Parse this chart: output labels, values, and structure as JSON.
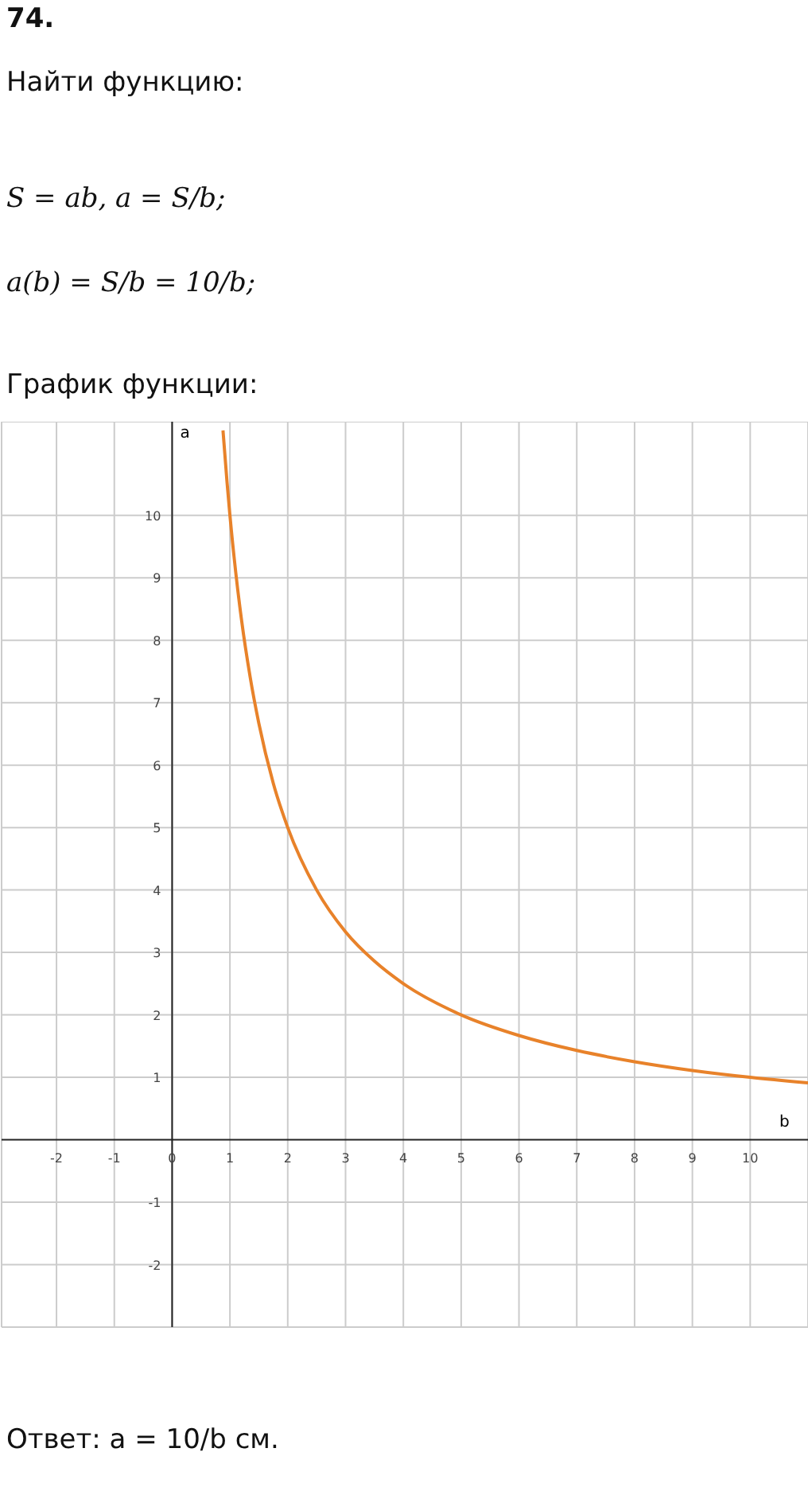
{
  "chart_data": {
    "type": "line",
    "title": "График функции:",
    "xlabel": "b",
    "ylabel": "a",
    "annotations": [
      "74.",
      "Найти функцию:",
      "S = ab,  a = S/b;",
      "a(b) = S/b = 10/b;",
      "Ответ:  a = 10/b  см."
    ],
    "x": [
      0.88,
      0.95,
      1,
      1.1,
      1.2,
      1.35,
      1.5,
      1.75,
      2,
      2.5,
      3,
      3.5,
      4,
      5,
      6,
      7,
      8,
      9,
      10,
      11
    ],
    "series": [
      {
        "color": "#e8822a",
        "values": [
          11.36,
          10.53,
          10,
          9.09,
          8.33,
          7.41,
          6.67,
          5.71,
          5,
          4,
          3.33,
          2.86,
          2.5,
          2,
          1.67,
          1.43,
          1.25,
          1.11,
          1,
          0.91
        ]
      }
    ],
    "xlim": [
      -2.95,
      11
    ],
    "ylim": [
      -3,
      11.5
    ],
    "xticks": [
      -2,
      -1,
      0,
      1,
      2,
      3,
      4,
      5,
      6,
      7,
      8,
      9,
      10
    ],
    "yticks": [
      -2,
      -1,
      1,
      2,
      3,
      4,
      5,
      6,
      7,
      8,
      9,
      10
    ],
    "grid": true,
    "marker": "none",
    "line_style": "solid"
  }
}
